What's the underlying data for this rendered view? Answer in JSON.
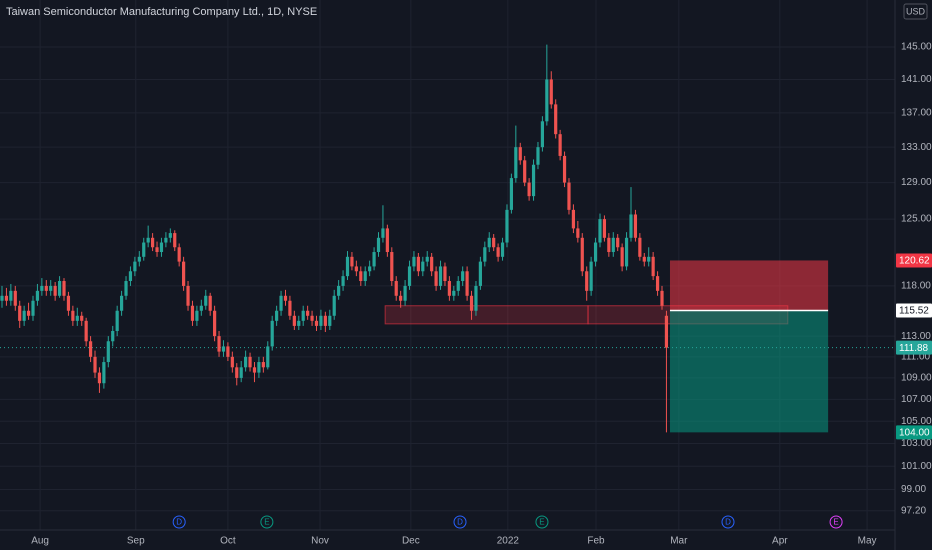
{
  "chart_data": {
    "type": "candlestick",
    "title": "Taiwan Semiconductor Manufacturing Company Ltd., 1D, NYSE",
    "currency": "USD",
    "log_scale": true,
    "grid": true,
    "up_color": "#26a69a",
    "down_color": "#ef5350",
    "ylim": [
      95.6,
      151
    ],
    "xlim": [
      -0.45,
      201.6
    ],
    "yticks": [
      {
        "value": 145,
        "label": "145.00"
      },
      {
        "value": 141,
        "label": "141.00"
      },
      {
        "value": 137,
        "label": "137.00"
      },
      {
        "value": 133,
        "label": "133.00"
      },
      {
        "value": 129,
        "label": "129.00"
      },
      {
        "value": 125,
        "label": "125.00"
      },
      {
        "value": 118,
        "label": "118.00"
      },
      {
        "value": 113,
        "label": "113.00"
      },
      {
        "value": 111,
        "label": "111.00"
      },
      {
        "value": 109,
        "label": "109.00"
      },
      {
        "value": 107,
        "label": "107.00"
      },
      {
        "value": 105,
        "label": "105.00"
      },
      {
        "value": 103,
        "label": "103.00"
      },
      {
        "value": 101,
        "label": "101.00"
      },
      {
        "value": 99,
        "label": "99.00"
      },
      {
        "value": 97.2,
        "label": "97.20"
      }
    ],
    "xticks": [
      {
        "value": 8.6,
        "label": "Aug"
      },
      {
        "value": 30.2,
        "label": "Sep"
      },
      {
        "value": 51,
        "label": "Oct"
      },
      {
        "value": 71.8,
        "label": "Nov"
      },
      {
        "value": 92.3,
        "label": "Dec"
      },
      {
        "value": 114.2,
        "label": "2022"
      },
      {
        "value": 134.1,
        "label": "Feb"
      },
      {
        "value": 152.8,
        "label": "Mar"
      },
      {
        "value": 175.6,
        "label": "Apr"
      },
      {
        "value": 195.3,
        "label": "May"
      }
    ],
    "ohlc": [
      [
        116.5,
        118,
        115.8,
        117
      ],
      [
        117,
        117.8,
        116,
        116.5
      ],
      [
        116.5,
        118.2,
        116,
        117.5
      ],
      [
        117.5,
        118,
        115.5,
        116
      ],
      [
        116,
        116.5,
        113.8,
        114.5
      ],
      [
        114.5,
        116,
        114,
        115.5
      ],
      [
        115.5,
        116.3,
        114.6,
        115
      ],
      [
        115,
        117,
        114.5,
        116.5
      ],
      [
        116.5,
        118.2,
        116,
        117.5
      ],
      [
        117.5,
        118.8,
        117,
        118
      ],
      [
        118,
        118.6,
        117,
        117.5
      ],
      [
        117.5,
        118.6,
        117,
        118
      ],
      [
        118,
        118.4,
        116.5,
        117
      ],
      [
        117,
        119,
        116.8,
        118.5
      ],
      [
        118.5,
        118.8,
        116.5,
        117
      ],
      [
        117,
        117.4,
        115,
        115.5
      ],
      [
        115.5,
        116,
        114,
        114.5
      ],
      [
        114.5,
        115.8,
        114,
        115
      ],
      [
        115,
        115.4,
        114,
        114.5
      ],
      [
        114.5,
        114.8,
        112,
        112.5
      ],
      [
        112.5,
        113,
        110.5,
        111
      ],
      [
        111,
        111.6,
        109,
        109.5
      ],
      [
        109.5,
        110,
        107.6,
        108.5
      ],
      [
        108.5,
        111,
        108,
        110.5
      ],
      [
        110.5,
        113,
        110,
        112.5
      ],
      [
        112.5,
        114,
        112,
        113.5
      ],
      [
        113.5,
        116,
        113,
        115.5
      ],
      [
        115.5,
        117.5,
        115,
        117
      ],
      [
        117,
        119,
        116.6,
        118.5
      ],
      [
        118.5,
        120,
        118,
        119.5
      ],
      [
        119.5,
        121,
        119,
        120.5
      ],
      [
        120.5,
        121.6,
        120,
        121
      ],
      [
        121,
        123,
        120.6,
        122.5
      ],
      [
        122.5,
        124.3,
        122,
        123
      ],
      [
        123,
        123.5,
        121.6,
        122
      ],
      [
        122,
        122.6,
        121,
        121.5
      ],
      [
        121.5,
        123,
        121,
        122.5
      ],
      [
        122.5,
        123.6,
        122,
        123
      ],
      [
        123,
        124,
        122.5,
        123.5
      ],
      [
        123.5,
        123.8,
        121.6,
        122
      ],
      [
        122,
        122.4,
        120,
        120.5
      ],
      [
        120.5,
        121,
        117.5,
        118
      ],
      [
        118,
        118.5,
        115.5,
        116
      ],
      [
        116,
        116.5,
        114,
        114.5
      ],
      [
        114.5,
        116,
        114,
        115.5
      ],
      [
        115.5,
        116.6,
        115,
        116
      ],
      [
        116,
        117.6,
        115.6,
        117
      ],
      [
        117,
        117.3,
        115,
        115.5
      ],
      [
        115.5,
        116,
        112.5,
        113
      ],
      [
        113,
        113.5,
        111,
        111.5
      ],
      [
        111.5,
        112.6,
        111,
        112
      ],
      [
        112,
        112.4,
        110.6,
        111
      ],
      [
        111,
        111.5,
        109.5,
        110
      ],
      [
        110,
        110.4,
        108.3,
        109
      ],
      [
        109,
        110.6,
        108.6,
        110
      ],
      [
        110,
        111.6,
        109.6,
        111
      ],
      [
        111,
        111.4,
        109.6,
        110
      ],
      [
        110,
        110.5,
        108.6,
        109.5
      ],
      [
        109.5,
        111,
        109,
        110.5
      ],
      [
        110.5,
        111,
        109.5,
        110
      ],
      [
        110,
        112.5,
        109.8,
        112
      ],
      [
        112,
        115,
        111.6,
        114.5
      ],
      [
        114.5,
        116,
        114,
        115.5
      ],
      [
        115.5,
        117.5,
        115,
        117
      ],
      [
        117,
        117.6,
        116,
        116.5
      ],
      [
        116.5,
        117,
        114.6,
        115
      ],
      [
        115,
        115.5,
        113.6,
        114
      ],
      [
        114,
        115,
        113.6,
        114.5
      ],
      [
        114.5,
        116,
        114,
        115.5
      ],
      [
        115.5,
        116,
        114.6,
        115
      ],
      [
        115,
        115.5,
        114,
        114.5
      ],
      [
        114.5,
        115,
        113.5,
        114
      ],
      [
        114,
        115.6,
        113.6,
        115
      ],
      [
        115,
        115.4,
        113.4,
        114
      ],
      [
        114,
        115.6,
        113.6,
        115
      ],
      [
        115,
        117.6,
        114.6,
        117
      ],
      [
        117,
        118.6,
        116.6,
        118
      ],
      [
        118,
        119.6,
        117.5,
        119
      ],
      [
        119,
        121.6,
        118.6,
        121
      ],
      [
        121,
        121.5,
        119.6,
        120
      ],
      [
        120,
        120.6,
        119,
        119.5
      ],
      [
        119.5,
        120,
        118,
        118.5
      ],
      [
        118.5,
        120,
        118,
        119.5
      ],
      [
        119.5,
        120.6,
        119,
        120
      ],
      [
        120,
        122,
        119.6,
        121.5
      ],
      [
        121.5,
        123.6,
        121,
        123
      ],
      [
        123,
        126.5,
        122.5,
        124
      ],
      [
        124,
        124.4,
        121,
        121.5
      ],
      [
        121.5,
        122,
        118,
        118.5
      ],
      [
        118.5,
        119,
        116.5,
        117
      ],
      [
        117,
        117.5,
        115.8,
        116.5
      ],
      [
        116.5,
        118.6,
        116,
        118
      ],
      [
        118,
        120.6,
        117.6,
        120
      ],
      [
        120,
        121.6,
        119.5,
        121
      ],
      [
        121,
        121.4,
        119,
        119.5
      ],
      [
        119.5,
        121,
        119,
        120.5
      ],
      [
        120.5,
        121.6,
        120,
        121
      ],
      [
        121,
        121.4,
        119,
        119.5
      ],
      [
        119.5,
        120,
        117.5,
        118
      ],
      [
        118,
        120.6,
        117.6,
        120
      ],
      [
        120,
        120.4,
        118,
        118.5
      ],
      [
        118.5,
        119,
        116.5,
        117
      ],
      [
        117,
        118,
        116.5,
        117.5
      ],
      [
        117.5,
        119,
        117,
        118.5
      ],
      [
        118.5,
        120,
        118,
        119.5
      ],
      [
        119.5,
        120,
        116.5,
        117
      ],
      [
        117,
        117.5,
        114.6,
        115.5
      ],
      [
        115.5,
        118.5,
        115,
        118
      ],
      [
        118,
        121,
        117.6,
        120.5
      ],
      [
        120.5,
        122.6,
        120,
        122
      ],
      [
        122,
        123.6,
        121.5,
        123
      ],
      [
        123,
        123.4,
        121.6,
        122
      ],
      [
        122,
        122.4,
        120.5,
        121
      ],
      [
        121,
        123,
        120.6,
        122.5
      ],
      [
        122.5,
        126.6,
        122,
        126
      ],
      [
        126,
        130,
        125.6,
        129.5
      ],
      [
        129.5,
        135.5,
        129,
        133
      ],
      [
        133,
        133.5,
        131,
        131.5
      ],
      [
        131.5,
        132,
        128.6,
        129
      ],
      [
        129,
        129.5,
        127,
        127.5
      ],
      [
        127.5,
        131.6,
        127,
        131
      ],
      [
        131,
        133.6,
        130.5,
        133
      ],
      [
        133,
        136.6,
        132.5,
        136
      ],
      [
        136,
        145.3,
        135.5,
        141
      ],
      [
        141,
        142,
        137.5,
        138
      ],
      [
        138,
        138.6,
        134,
        134.5
      ],
      [
        134.5,
        135,
        131.5,
        132
      ],
      [
        132,
        132.5,
        128.5,
        129
      ],
      [
        129,
        129.5,
        125.5,
        126
      ],
      [
        126,
        126.6,
        123.5,
        124
      ],
      [
        124,
        124.8,
        122.5,
        123
      ],
      [
        123,
        123.5,
        119,
        119.5
      ],
      [
        119.5,
        120,
        116.5,
        117.5
      ],
      [
        117.5,
        121,
        117,
        120.5
      ],
      [
        120.5,
        123,
        120,
        122.5
      ],
      [
        122.5,
        125.6,
        122,
        125
      ],
      [
        125,
        125.4,
        122.6,
        123
      ],
      [
        123,
        123.5,
        121,
        121.5
      ],
      [
        121.5,
        123.6,
        121,
        123
      ],
      [
        123,
        123.4,
        121.6,
        122
      ],
      [
        122,
        122.4,
        119.5,
        120
      ],
      [
        120,
        123.6,
        119.6,
        123
      ],
      [
        123,
        128.5,
        122.6,
        125.5
      ],
      [
        125.5,
        126,
        122.6,
        123
      ],
      [
        123,
        123.5,
        120.6,
        121
      ],
      [
        121,
        121.4,
        120,
        120.5
      ],
      [
        120.5,
        122,
        120,
        121
      ],
      [
        121,
        121.5,
        118.6,
        119
      ],
      [
        119,
        119.5,
        117,
        117.5
      ],
      [
        117.5,
        118,
        115.6,
        116
      ],
      [
        115,
        115.5,
        104,
        111.88
      ]
    ],
    "last_price": {
      "value": 111.88,
      "label": "111.88",
      "color": "#26a69a"
    },
    "position": {
      "start": 150.8,
      "end": 186.5,
      "stop": {
        "value": 120.62,
        "label": "120.62",
        "color": "#f23645"
      },
      "entry": {
        "value": 115.52,
        "label": "115.52",
        "color": "#ffffff"
      },
      "target": {
        "value": 104,
        "label": "104.00",
        "color": "#089981"
      }
    },
    "zones": [
      {
        "start": 86.5,
        "end": 132.3,
        "top": 116,
        "bottom": 114.2
      },
      {
        "start": 132.3,
        "end": 177.4,
        "top": 116,
        "bottom": 114.2
      }
    ],
    "events": [
      {
        "at": 40,
        "label": "D",
        "color": "#2962ff"
      },
      {
        "at": 59.8,
        "label": "E",
        "color": "#089981"
      },
      {
        "at": 103.4,
        "label": "D",
        "color": "#2962ff"
      },
      {
        "at": 121.9,
        "label": "E",
        "color": "#089981"
      },
      {
        "at": 163.9,
        "label": "D",
        "color": "#2962ff"
      },
      {
        "at": 188.3,
        "label": "E",
        "color": "#e040fb"
      }
    ]
  }
}
